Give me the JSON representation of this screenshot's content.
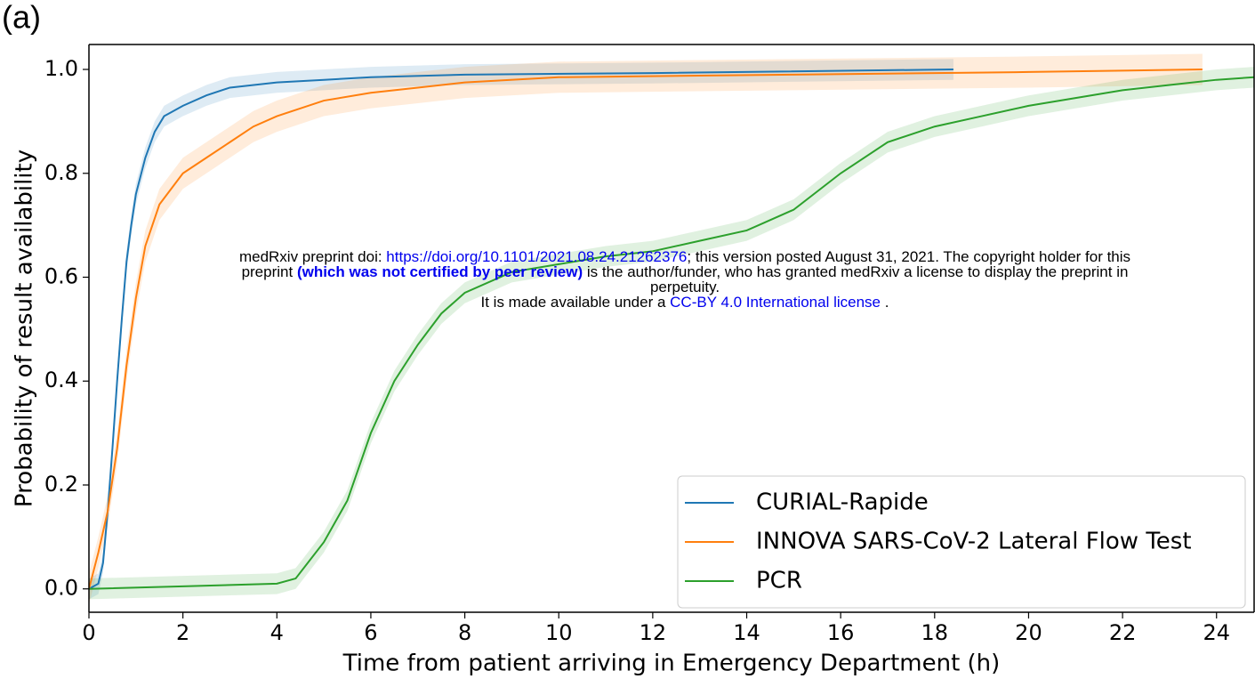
{
  "chart_data": {
    "type": "line",
    "panel_label": "(a)",
    "xlabel": "Time from patient arriving in Emergency Department (h)",
    "ylabel": "Probability of result availability",
    "xlim": [
      0,
      24.8
    ],
    "ylim": [
      -0.045,
      1.048
    ],
    "xticks": [
      0,
      2,
      4,
      6,
      8,
      10,
      12,
      14,
      16,
      18,
      20,
      22,
      24
    ],
    "yticks": [
      {
        "value": 0,
        "label": "0.0"
      },
      0.2,
      0.4,
      0.6,
      0.8,
      {
        "value": 1,
        "label": "1.0"
      }
    ],
    "legend": "lower right",
    "series": [
      {
        "name": "CURIAL-Rapide",
        "color": "#1f77b4",
        "ci": 0.02,
        "x": [
          0,
          0.2,
          0.3,
          0.4,
          0.5,
          0.6,
          0.7,
          0.8,
          0.9,
          1.0,
          1.2,
          1.4,
          1.6,
          2,
          2.5,
          3,
          4,
          5,
          6,
          8,
          12,
          18.4
        ],
        "values": [
          0,
          0.01,
          0.05,
          0.15,
          0.27,
          0.4,
          0.52,
          0.63,
          0.7,
          0.76,
          0.83,
          0.88,
          0.91,
          0.93,
          0.95,
          0.965,
          0.975,
          0.98,
          0.985,
          0.99,
          0.993,
          1.0
        ]
      },
      {
        "name": "INNOVA SARS-CoV-2 Lateral Flow Test",
        "color": "#ff7f0e",
        "ci": 0.03,
        "x": [
          0,
          0.2,
          0.4,
          0.6,
          0.8,
          1.0,
          1.2,
          1.5,
          2,
          2.5,
          3,
          3.5,
          4,
          5,
          6,
          7,
          8,
          10,
          15,
          20,
          23.7
        ],
        "values": [
          0,
          0.07,
          0.15,
          0.27,
          0.43,
          0.56,
          0.66,
          0.74,
          0.8,
          0.83,
          0.86,
          0.89,
          0.91,
          0.94,
          0.955,
          0.965,
          0.975,
          0.985,
          0.99,
          0.995,
          1.0
        ]
      },
      {
        "name": "PCR",
        "color": "#2ca02c",
        "ci": 0.02,
        "x": [
          0,
          2,
          4,
          4.4,
          5,
          5.5,
          6,
          6.5,
          7,
          7.5,
          8,
          9,
          10,
          11,
          12,
          13,
          14,
          15,
          16,
          17,
          18,
          19,
          20,
          21,
          22,
          23,
          24,
          24.8
        ],
        "values": [
          0,
          0.005,
          0.01,
          0.02,
          0.09,
          0.17,
          0.3,
          0.4,
          0.47,
          0.53,
          0.57,
          0.61,
          0.625,
          0.64,
          0.65,
          0.67,
          0.69,
          0.73,
          0.8,
          0.86,
          0.89,
          0.91,
          0.93,
          0.945,
          0.96,
          0.97,
          0.98,
          0.985
        ]
      }
    ],
    "watermark": [
      [
        "medRxiv preprint doi: ",
        "https://doi.org/10.1101/2021.08.24.21262376",
        "; this version posted August 31, 2021. The copyright holder for this"
      ],
      [
        "preprint ",
        "(which was not certified by peer review)",
        " is the author/funder, who has granted medRxiv a license to display the preprint in"
      ],
      [
        "perpetuity."
      ],
      [
        "It is made available under a ",
        "CC-BY 4.0 International license",
        " ."
      ]
    ]
  }
}
